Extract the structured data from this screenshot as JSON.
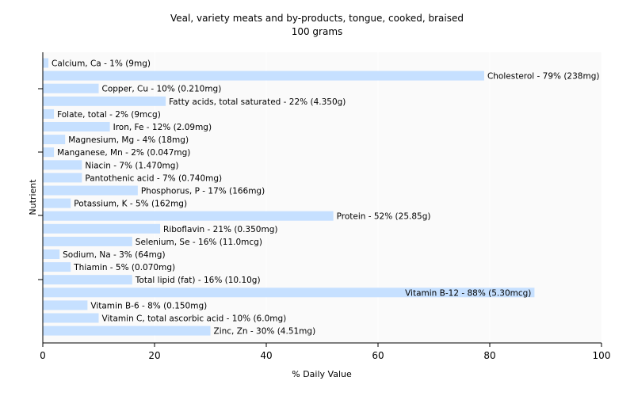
{
  "chart_data": {
    "type": "bar",
    "orientation": "horizontal",
    "title": "Veal, variety meats and by-products, tongue, cooked, braised",
    "subtitle": "100 grams",
    "xlabel": "% Daily Value",
    "ylabel": "Nutrient",
    "xlim": [
      0,
      100
    ],
    "xticks": [
      0,
      20,
      40,
      60,
      80,
      100
    ],
    "bar_color": "#c6e0ff",
    "plot_background": "#fafafa",
    "gridline_color": "#ffffff",
    "grid": true,
    "legend": "none",
    "categories": [
      "Calcium, Ca",
      "Cholesterol",
      "Copper, Cu",
      "Fatty acids, total saturated",
      "Folate, total",
      "Iron, Fe",
      "Magnesium, Mg",
      "Manganese, Mn",
      "Niacin",
      "Pantothenic acid",
      "Phosphorus, P",
      "Potassium, K",
      "Protein",
      "Riboflavin",
      "Selenium, Se",
      "Sodium, Na",
      "Thiamin",
      "Total lipid (fat)",
      "Vitamin B-12",
      "Vitamin B-6",
      "Vitamin C, total ascorbic acid",
      "Zinc, Zn"
    ],
    "values": [
      1,
      79,
      10,
      22,
      2,
      12,
      4,
      2,
      7,
      7,
      17,
      5,
      52,
      21,
      16,
      3,
      5,
      16,
      88,
      8,
      10,
      30
    ],
    "labels": [
      "Calcium, Ca - 1% (9mg)",
      "Cholesterol - 79% (238mg)",
      "Copper, Cu - 10% (0.210mg)",
      "Fatty acids, total saturated - 22% (4.350g)",
      "Folate, total - 2% (9mcg)",
      "Iron, Fe - 12% (2.09mg)",
      "Magnesium, Mg - 4% (18mg)",
      "Manganese, Mn - 2% (0.047mg)",
      "Niacin - 7% (1.470mg)",
      "Pantothenic acid - 7% (0.740mg)",
      "Phosphorus, P - 17% (166mg)",
      "Potassium, K - 5% (162mg)",
      "Protein - 52% (25.85g)",
      "Riboflavin - 21% (0.350mg)",
      "Selenium, Se - 16% (11.0mcg)",
      "Sodium, Na - 3% (64mg)",
      "Thiamin - 5% (0.070mg)",
      "Total lipid (fat) - 16% (10.10g)",
      "Vitamin B-12 - 88% (5.30mcg)",
      "Vitamin B-6 - 8% (0.150mg)",
      "Vitamin C, total ascorbic acid - 10% (6.0mg)",
      "Zinc, Zn - 30% (4.51mg)"
    ]
  }
}
